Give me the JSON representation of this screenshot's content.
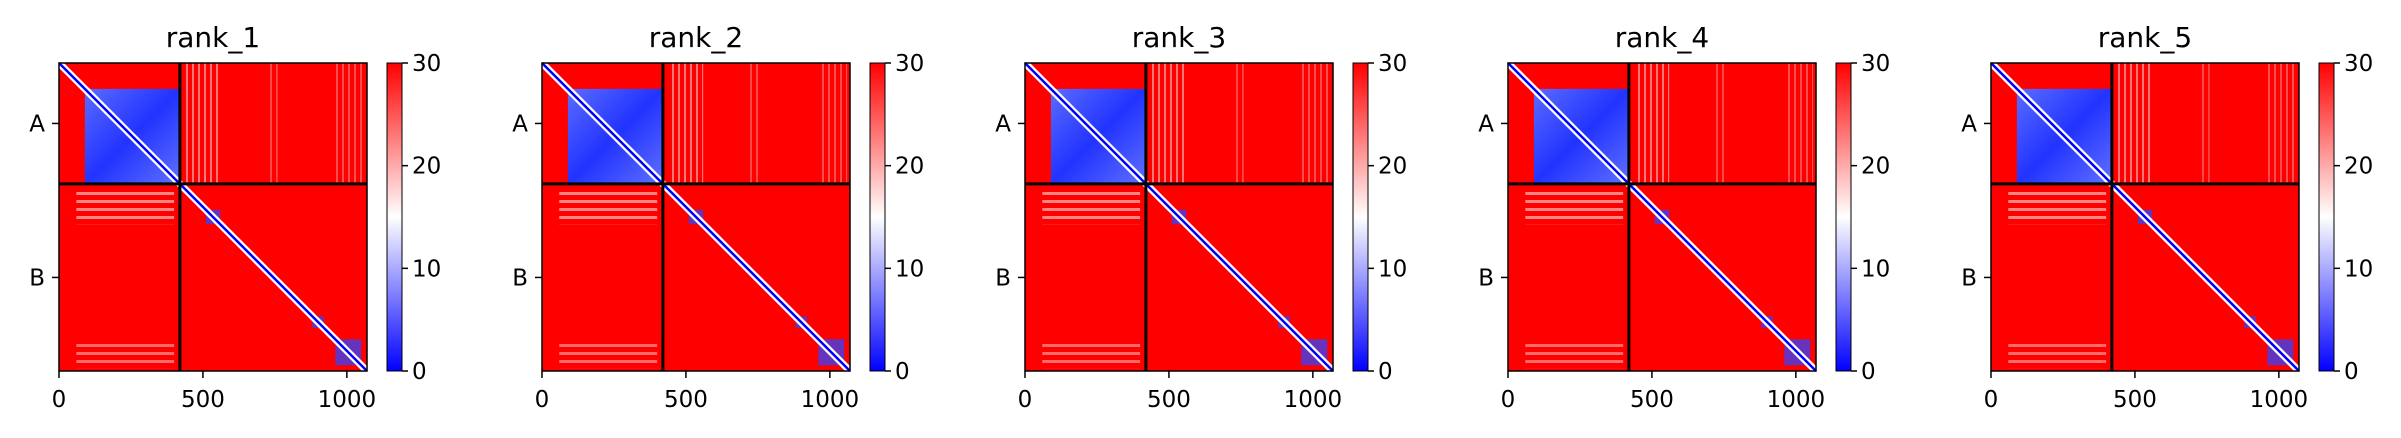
{
  "chart_data": [
    {
      "type": "heatmap",
      "title": "rank_1",
      "x_ticks": [
        0,
        500,
        1000
      ],
      "y_ticks": [
        "A",
        "B"
      ],
      "xlim": [
        0,
        1070
      ],
      "chains": [
        {
          "label": "A",
          "length": 420
        },
        {
          "label": "B",
          "length": 650
        }
      ],
      "colorbar": {
        "ticks": [
          0,
          10,
          20,
          30
        ],
        "range": [
          0,
          30
        ],
        "colors": [
          "#0000ff",
          "#ffffff",
          "#ff0000"
        ]
      }
    },
    {
      "type": "heatmap",
      "title": "rank_2",
      "x_ticks": [
        0,
        500,
        1000
      ],
      "y_ticks": [
        "A",
        "B"
      ],
      "xlim": [
        0,
        1070
      ],
      "chains": [
        {
          "label": "A",
          "length": 420
        },
        {
          "label": "B",
          "length": 650
        }
      ],
      "colorbar": {
        "ticks": [
          0,
          10,
          20,
          30
        ],
        "range": [
          0,
          30
        ],
        "colors": [
          "#0000ff",
          "#ffffff",
          "#ff0000"
        ]
      }
    },
    {
      "type": "heatmap",
      "title": "rank_3",
      "x_ticks": [
        0,
        500,
        1000
      ],
      "y_ticks": [
        "A",
        "B"
      ],
      "xlim": [
        0,
        1070
      ],
      "chains": [
        {
          "label": "A",
          "length": 420
        },
        {
          "label": "B",
          "length": 650
        }
      ],
      "colorbar": {
        "ticks": [
          0,
          10,
          20,
          30
        ],
        "range": [
          0,
          30
        ],
        "colors": [
          "#0000ff",
          "#ffffff",
          "#ff0000"
        ]
      }
    },
    {
      "type": "heatmap",
      "title": "rank_4",
      "x_ticks": [
        0,
        500,
        1000
      ],
      "y_ticks": [
        "A",
        "B"
      ],
      "xlim": [
        0,
        1070
      ],
      "chains": [
        {
          "label": "A",
          "length": 420
        },
        {
          "label": "B",
          "length": 650
        }
      ],
      "colorbar": {
        "ticks": [
          0,
          10,
          20,
          30
        ],
        "range": [
          0,
          30
        ],
        "colors": [
          "#0000ff",
          "#ffffff",
          "#ff0000"
        ]
      }
    },
    {
      "type": "heatmap",
      "title": "rank_5",
      "x_ticks": [
        0,
        500,
        1000
      ],
      "y_ticks": [
        "A",
        "B"
      ],
      "xlim": [
        0,
        1070
      ],
      "chains": [
        {
          "label": "A",
          "length": 420
        },
        {
          "label": "B",
          "length": 650
        }
      ],
      "colorbar": {
        "ticks": [
          0,
          10,
          20,
          30
        ],
        "range": [
          0,
          30
        ],
        "colors": [
          "#0000ff",
          "#ffffff",
          "#ff0000"
        ]
      }
    }
  ]
}
